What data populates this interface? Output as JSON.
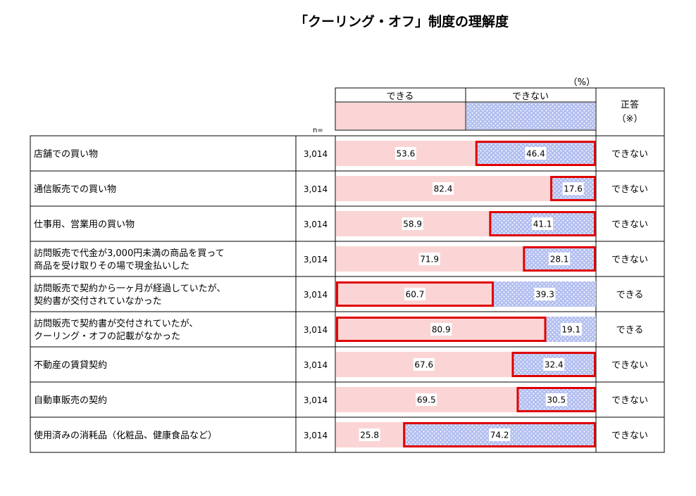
{
  "chart_data": {
    "type": "bar",
    "stacked": true,
    "orientation": "horizontal",
    "title": "「クーリング・オフ」制度の理解度",
    "unit_label": "（%）",
    "n_label": "n=",
    "answer_header": "正答",
    "answer_header_note": "（※）",
    "xlim": [
      0,
      100
    ],
    "colors": {
      "can": "#fbd5d5",
      "cannot": "#b3bff0",
      "cannot_dot": "#ffffff",
      "correct_border": "#e00000"
    },
    "series": [
      {
        "name": "できる",
        "values": [
          53.6,
          82.4,
          58.9,
          71.9,
          60.7,
          80.9,
          67.6,
          69.5,
          25.8
        ]
      },
      {
        "name": "できない",
        "values": [
          46.4,
          17.6,
          41.1,
          28.1,
          39.3,
          19.1,
          32.4,
          30.5,
          74.2
        ]
      }
    ],
    "categories": [
      {
        "lines": [
          "店舗での買い物"
        ]
      },
      {
        "lines": [
          "通信販売での買い物"
        ]
      },
      {
        "lines": [
          "仕事用、営業用の買い物"
        ]
      },
      {
        "lines": [
          "訪問販売で代金が3,000円未満の商品を買って",
          "商品を受け取りその場で現金払いした"
        ]
      },
      {
        "lines": [
          "訪問販売で契約から一ヶ月が経過していたが、",
          "契約書が交付されていなかった"
        ]
      },
      {
        "lines": [
          "訪問販売で契約書が交付されていたが、",
          "クーリング・オフの記載がなかった"
        ]
      },
      {
        "lines": [
          "不動産の賃貸契約"
        ]
      },
      {
        "lines": [
          "自動車販売の契約"
        ]
      },
      {
        "lines": [
          "使用済みの消耗品（化粧品、健康食品など）"
        ]
      }
    ],
    "n": [
      "3,014",
      "3,014",
      "3,014",
      "3,014",
      "3,014",
      "3,014",
      "3,014",
      "3,014",
      "3,014"
    ],
    "correct_answers": [
      "できない",
      "できない",
      "できない",
      "できない",
      "できる",
      "できる",
      "できない",
      "できない",
      "できない"
    ]
  }
}
